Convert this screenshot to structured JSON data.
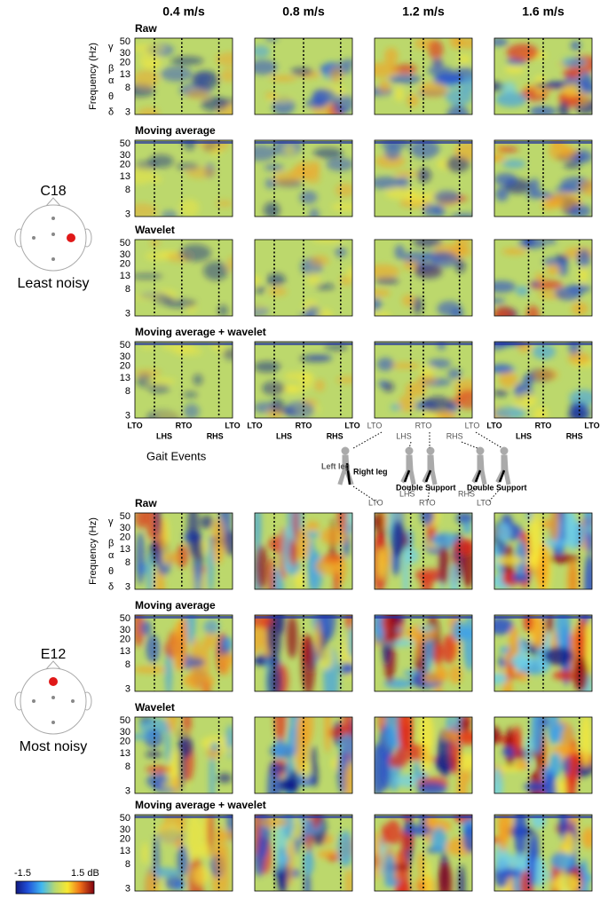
{
  "columns": [
    "0.4 m/s",
    "0.8 m/s",
    "1.2 m/s",
    "1.6 m/s"
  ],
  "rows": [
    "Raw",
    "Moving average",
    "Wavelet",
    "Moving average + wavelet"
  ],
  "y_axis": {
    "label": "Frequency (Hz)",
    "ticks": [
      50,
      30,
      20,
      13,
      8,
      3
    ],
    "bands": [
      "γ",
      "β",
      "α",
      "θ",
      "δ"
    ]
  },
  "electrodes": [
    {
      "name": "C18",
      "note": "Least noisy"
    },
    {
      "name": "E12",
      "note": "Most noisy"
    }
  ],
  "gait_events": {
    "title": "Gait Events",
    "top_labels": [
      "LTO",
      "RTO",
      "LTO"
    ],
    "bottom_labels": [
      "LHS",
      "RHS"
    ],
    "left_leg": "Left leg",
    "right_leg": "Right leg",
    "double_support": "Double Support"
  },
  "colorbar": {
    "min": "-1.5",
    "max": "1.5 dB"
  }
}
